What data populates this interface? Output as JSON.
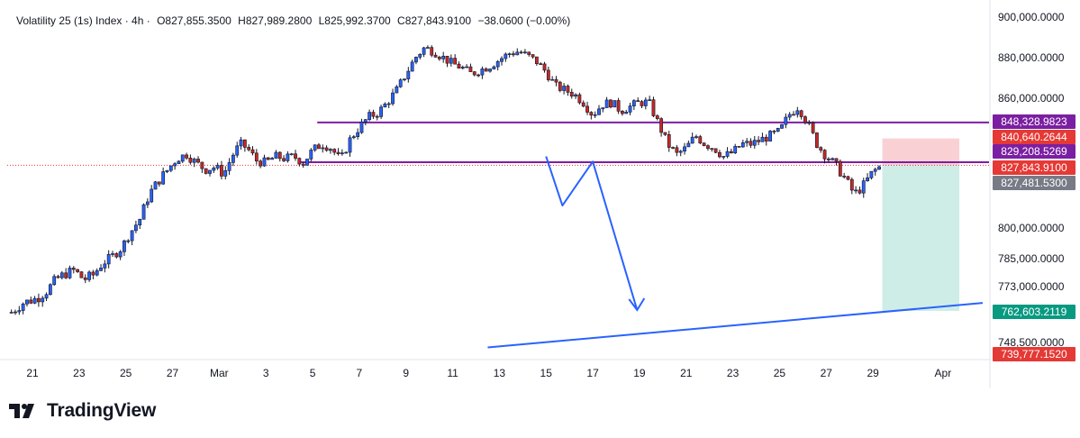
{
  "header": {
    "symbol": "Volatility 25 (1s) Index · 4h ·",
    "open": "O827,855.3500",
    "high": "H827,989.2800",
    "low": "L825,992.3700",
    "close": "C827,843.9100",
    "change": "−38.0600 (−0.00%)"
  },
  "footer": {
    "brand": "TradingView"
  },
  "colors": {
    "up": "#2962ff",
    "down": "#c62828",
    "level_line": "#7b1fa2",
    "arrow": "#2962ff",
    "trendline": "#2962ff",
    "risk_zone": "#f8c9cc",
    "reward_zone": "#c9ebe3",
    "current_price": "#e53935"
  },
  "chart_data": {
    "type": "candlestick",
    "timeframe": "4h",
    "y_axis_ticks": [
      {
        "value": 900000,
        "label": "900,000.0000"
      },
      {
        "value": 880000,
        "label": "880,000.0000"
      },
      {
        "value": 860000,
        "label": "860,000.0000"
      },
      {
        "value": 800000,
        "label": "800,000.0000"
      },
      {
        "value": 785000,
        "label": "785,000.0000"
      },
      {
        "value": 773000,
        "label": "773,000.0000"
      },
      {
        "value": 748500,
        "label": "748,500.0000"
      }
    ],
    "x_axis_ticks": [
      {
        "label": "21",
        "day": 0
      },
      {
        "label": "23",
        "day": 2
      },
      {
        "label": "25",
        "day": 4
      },
      {
        "label": "27",
        "day": 6
      },
      {
        "label": "Mar",
        "day": 8
      },
      {
        "label": "3",
        "day": 10
      },
      {
        "label": "5",
        "day": 12
      },
      {
        "label": "7",
        "day": 14
      },
      {
        "label": "9",
        "day": 16
      },
      {
        "label": "11",
        "day": 18
      },
      {
        "label": "13",
        "day": 20
      },
      {
        "label": "15",
        "day": 22
      },
      {
        "label": "17",
        "day": 24
      },
      {
        "label": "19",
        "day": 26
      },
      {
        "label": "21",
        "day": 28
      },
      {
        "label": "23",
        "day": 30
      },
      {
        "label": "25",
        "day": 32
      },
      {
        "label": "27",
        "day": 34
      },
      {
        "label": "29",
        "day": 36
      },
      {
        "label": "Apr",
        "day": 39
      }
    ],
    "price_tags": [
      {
        "label": "848,328.9823",
        "value": 848328.9823,
        "color": "#7b1fa2"
      },
      {
        "label": "840,640.2644",
        "value": 840640.2644,
        "color": "#e53935"
      },
      {
        "label": "829,208.5269",
        "value": 829208.5269,
        "color": "#7b1fa2"
      },
      {
        "label": "827,843.9100",
        "value": 827843.91,
        "color": "#e53935"
      },
      {
        "label": "827,481.5300",
        "value": 827481.53,
        "color": "#787b86"
      },
      {
        "label": "762,603.2119",
        "value": 762603.2119,
        "color": "#089981"
      },
      {
        "label": "739,777.1520",
        "value": 739777.152,
        "color": "#e53935"
      }
    ],
    "horizontal_levels": [
      {
        "value": 848328.9823,
        "from_day": 12.2
      },
      {
        "value": 829208.5269,
        "from_day": 11.5
      }
    ],
    "position_tool": {
      "from_day": 36.4,
      "to_day": 39.7,
      "entry": 827843.91,
      "stop": 840640.2644,
      "target": 762603.2119
    },
    "arrow_path_points": [
      {
        "day": 22.0,
        "price": 832000
      },
      {
        "day": 22.7,
        "price": 810000
      },
      {
        "day": 24.0,
        "price": 829500
      },
      {
        "day": 25.9,
        "price": 763000
      }
    ],
    "trendline": {
      "from": {
        "day": 19.5,
        "price": 744500
      },
      "to": {
        "day": 40.7,
        "price": 766000
      }
    },
    "price_path": [
      [
        -0.9,
        762000
      ],
      [
        -0.4,
        766000
      ],
      [
        0.2,
        768000
      ],
      [
        0.6,
        771000
      ],
      [
        1.0,
        776000
      ],
      [
        1.4,
        778500
      ],
      [
        1.8,
        780000
      ],
      [
        2.2,
        776000
      ],
      [
        2.6,
        778000
      ],
      [
        3.0,
        783000
      ],
      [
        3.4,
        786000
      ],
      [
        3.8,
        790000
      ],
      [
        4.2,
        798000
      ],
      [
        4.6,
        804000
      ],
      [
        5.0,
        815000
      ],
      [
        5.4,
        821000
      ],
      [
        5.8,
        826000
      ],
      [
        6.2,
        831000
      ],
      [
        6.6,
        833000
      ],
      [
        7.0,
        829000
      ],
      [
        7.4,
        826000
      ],
      [
        7.8,
        827000
      ],
      [
        8.2,
        824000
      ],
      [
        8.6,
        833000
      ],
      [
        8.9,
        838000
      ],
      [
        9.2,
        836000
      ],
      [
        9.6,
        830000
      ],
      [
        10.0,
        829000
      ],
      [
        10.4,
        832000
      ],
      [
        10.8,
        831000
      ],
      [
        11.2,
        832000
      ],
      [
        11.6,
        829000
      ],
      [
        12.0,
        835000
      ],
      [
        12.4,
        838000
      ],
      [
        12.8,
        836000
      ],
      [
        13.2,
        830000
      ],
      [
        13.6,
        840000
      ],
      [
        14.0,
        846000
      ],
      [
        14.4,
        851000
      ],
      [
        14.8,
        853000
      ],
      [
        15.2,
        858000
      ],
      [
        15.6,
        864000
      ],
      [
        16.0,
        872000
      ],
      [
        16.4,
        880000
      ],
      [
        16.8,
        885000
      ],
      [
        17.2,
        883000
      ],
      [
        17.6,
        880000
      ],
      [
        18.0,
        877000
      ],
      [
        18.4,
        875000
      ],
      [
        18.8,
        872000
      ],
      [
        19.2,
        874000
      ],
      [
        19.6,
        876000
      ],
      [
        20.0,
        879000
      ],
      [
        20.4,
        882000
      ],
      [
        20.8,
        883000
      ],
      [
        21.2,
        881000
      ],
      [
        21.6,
        878000
      ],
      [
        22.0,
        873000
      ],
      [
        22.4,
        866000
      ],
      [
        22.8,
        864000
      ],
      [
        23.2,
        862000
      ],
      [
        23.6,
        858000
      ],
      [
        24.0,
        852000
      ],
      [
        24.4,
        857000
      ],
      [
        24.8,
        858000
      ],
      [
        25.2,
        854000
      ],
      [
        25.6,
        856000
      ],
      [
        26.0,
        858000
      ],
      [
        26.4,
        858000
      ],
      [
        26.8,
        848000
      ],
      [
        27.2,
        838000
      ],
      [
        27.6,
        833000
      ],
      [
        28.0,
        836000
      ],
      [
        28.4,
        842000
      ],
      [
        28.8,
        838000
      ],
      [
        29.2,
        836000
      ],
      [
        29.6,
        832000
      ],
      [
        30.0,
        834000
      ],
      [
        30.4,
        838000
      ],
      [
        30.8,
        838000
      ],
      [
        31.2,
        840000
      ],
      [
        31.6,
        842000
      ],
      [
        32.0,
        844000
      ],
      [
        32.4,
        852000
      ],
      [
        32.8,
        856000
      ],
      [
        33.2,
        848000
      ],
      [
        33.6,
        838000
      ],
      [
        34.0,
        832000
      ],
      [
        34.4,
        828000
      ],
      [
        34.8,
        822000
      ],
      [
        35.2,
        815000
      ],
      [
        35.6,
        819000
      ],
      [
        36.0,
        825000
      ],
      [
        36.4,
        827844
      ]
    ]
  }
}
